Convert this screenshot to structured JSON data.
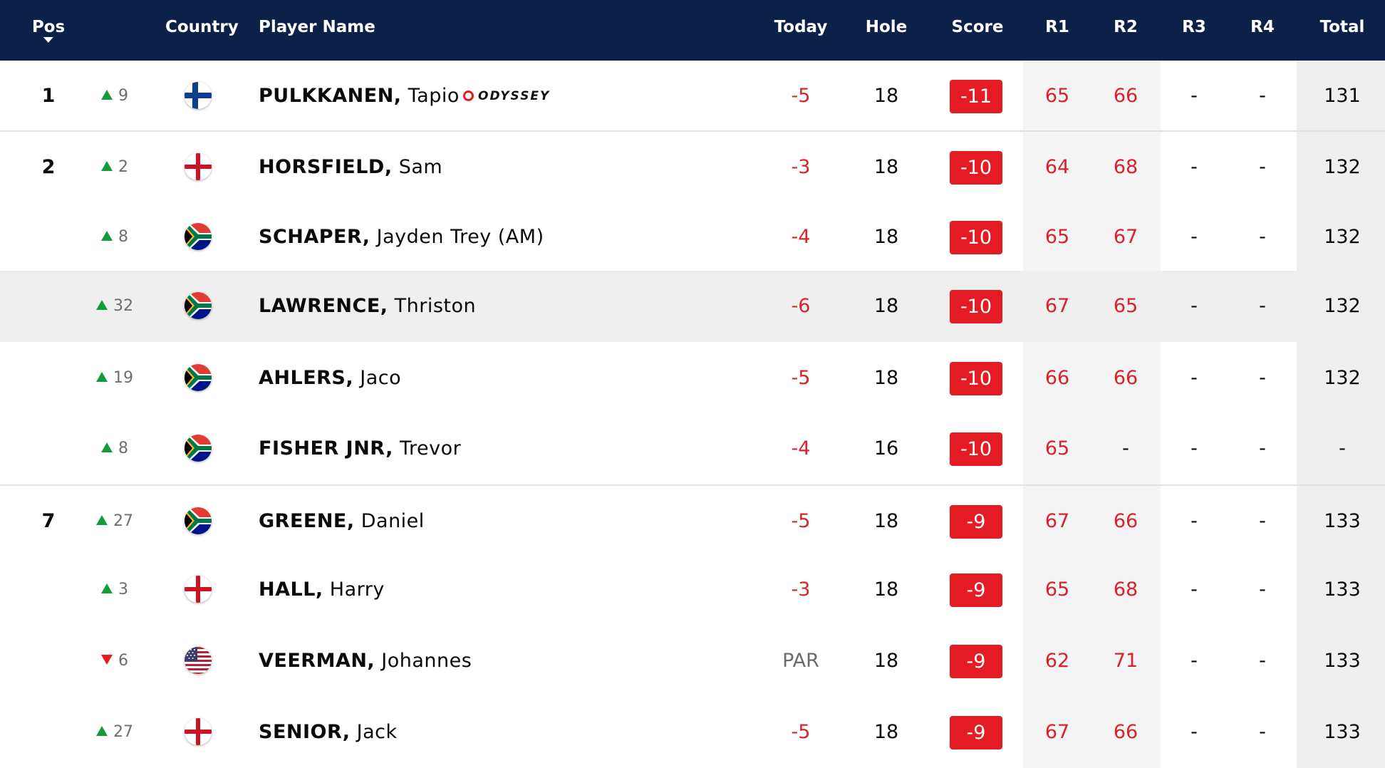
{
  "header": {
    "pos": "Pos",
    "country": "Country",
    "player": "Player Name",
    "today": "Today",
    "hole": "Hole",
    "score": "Score",
    "r1": "R1",
    "r2": "R2",
    "r3": "R3",
    "r4": "R4",
    "total": "Total"
  },
  "colors": {
    "header_bg": "#0b2147",
    "under_par_red": "#d8232a",
    "movement_up": "#169b3c",
    "movement_down": "#e41b23"
  },
  "rows": [
    {
      "pos": "1",
      "move": "9",
      "dir": "up",
      "flag": "finland",
      "last": "PULKKANEN,",
      "first": "Tapio",
      "sponsor": "ODYSSEY",
      "today": "-5",
      "hole": "18",
      "score": "-11",
      "r1": "65",
      "r2": "66",
      "r3": "-",
      "r4": "-",
      "total": "131"
    },
    {
      "pos": "2",
      "move": "2",
      "dir": "up",
      "flag": "england",
      "last": "HORSFIELD,",
      "first": "Sam",
      "today": "-3",
      "hole": "18",
      "score": "-10",
      "r1": "64",
      "r2": "68",
      "r3": "-",
      "r4": "-",
      "total": "132"
    },
    {
      "pos": "",
      "move": "8",
      "dir": "up",
      "flag": "south-africa",
      "last": "SCHAPER,",
      "first": "Jayden Trey (AM)",
      "today": "-4",
      "hole": "18",
      "score": "-10",
      "r1": "65",
      "r2": "67",
      "r3": "-",
      "r4": "-",
      "total": "132"
    },
    {
      "pos": "",
      "move": "32",
      "dir": "up",
      "flag": "south-africa",
      "last": "LAWRENCE,",
      "first": "Thriston",
      "today": "-6",
      "hole": "18",
      "score": "-10",
      "r1": "67",
      "r2": "65",
      "r3": "-",
      "r4": "-",
      "total": "132"
    },
    {
      "pos": "",
      "move": "19",
      "dir": "up",
      "flag": "south-africa",
      "last": "AHLERS,",
      "first": "Jaco",
      "today": "-5",
      "hole": "18",
      "score": "-10",
      "r1": "66",
      "r2": "66",
      "r3": "-",
      "r4": "-",
      "total": "132"
    },
    {
      "pos": "",
      "move": "8",
      "dir": "up",
      "flag": "south-africa",
      "last": "FISHER JNR,",
      "first": "Trevor",
      "today": "-4",
      "hole": "16",
      "score": "-10",
      "r1": "65",
      "r2": "-",
      "r3": "-",
      "r4": "-",
      "total": "-"
    },
    {
      "pos": "7",
      "move": "27",
      "dir": "up",
      "flag": "south-africa",
      "last": "GREENE,",
      "first": "Daniel",
      "today": "-5",
      "hole": "18",
      "score": "-9",
      "r1": "67",
      "r2": "66",
      "r3": "-",
      "r4": "-",
      "total": "133"
    },
    {
      "pos": "",
      "move": "3",
      "dir": "up",
      "flag": "england",
      "last": "HALL,",
      "first": "Harry",
      "today": "-3",
      "hole": "18",
      "score": "-9",
      "r1": "65",
      "r2": "68",
      "r3": "-",
      "r4": "-",
      "total": "133"
    },
    {
      "pos": "",
      "move": "6",
      "dir": "down",
      "flag": "usa",
      "last": "VEERMAN,",
      "first": "Johannes",
      "today": "PAR",
      "hole": "18",
      "score": "-9",
      "r1": "62",
      "r2": "71",
      "r3": "-",
      "r4": "-",
      "total": "133"
    },
    {
      "pos": "",
      "move": "27",
      "dir": "up",
      "flag": "england",
      "last": "SENIOR,",
      "first": "Jack",
      "today": "-5",
      "hole": "18",
      "score": "-9",
      "r1": "67",
      "r2": "66",
      "r3": "-",
      "r4": "-",
      "total": "133"
    }
  ]
}
